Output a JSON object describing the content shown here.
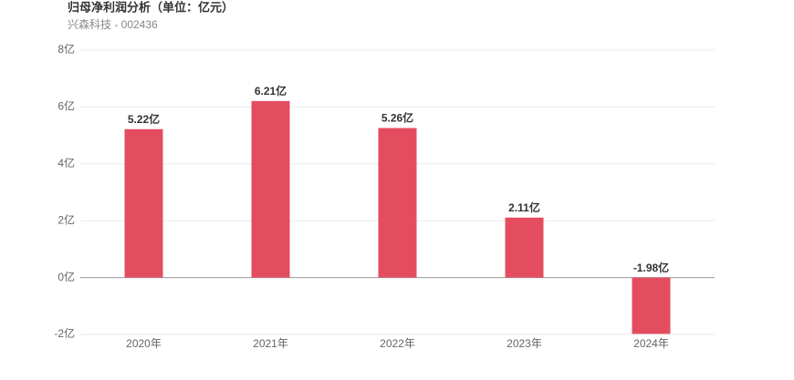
{
  "chart_data": {
    "type": "bar",
    "title": "归母净利润分析（单位：亿元）",
    "subtitle": "兴森科技 - 002436",
    "categories": [
      "2020年",
      "2021年",
      "2022年",
      "2023年",
      "2024年"
    ],
    "values": [
      5.22,
      6.21,
      5.26,
      2.11,
      -1.98
    ],
    "value_labels": [
      "5.22亿",
      "6.21亿",
      "5.26亿",
      "2.11亿",
      "-1.98亿"
    ],
    "color": "#e44d60",
    "ylim": [
      -2,
      8
    ],
    "yticks": [
      {
        "value": -2,
        "label": "-2亿"
      },
      {
        "value": 0,
        "label": "0亿"
      },
      {
        "value": 2,
        "label": "2亿"
      },
      {
        "value": 4,
        "label": "4亿"
      },
      {
        "value": 6,
        "label": "6亿"
      },
      {
        "value": 8,
        "label": "8亿"
      }
    ],
    "grid": true
  }
}
